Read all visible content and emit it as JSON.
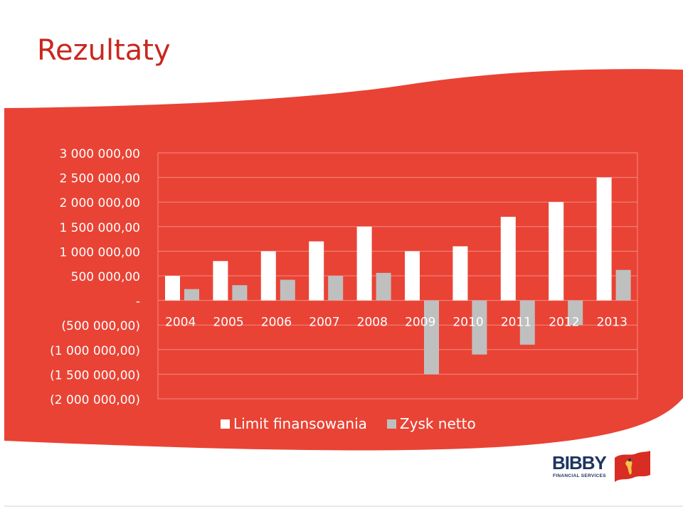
{
  "slide": {
    "title": "Rezultaty",
    "colors": {
      "accent_red": "#e94335",
      "title_red": "#c8281f",
      "white": "#ffffff",
      "grey_series": "#bfbfbf",
      "gridline": "#f28b80",
      "logo_navy": "#1e3560"
    }
  },
  "logo": {
    "name": "BIBBY",
    "subtitle": "FINANCIAL SERVICES",
    "icon": "bibby-flag-icon"
  },
  "chart_data": {
    "type": "bar",
    "title": "",
    "xlabel": "",
    "ylabel": "",
    "categories": [
      "2004",
      "2005",
      "2006",
      "2007",
      "2008",
      "2009",
      "2010",
      "2011",
      "2012",
      "2013"
    ],
    "series": [
      {
        "name": "Limit finansowania",
        "color": "#ffffff",
        "values": [
          500000,
          800000,
          1000000,
          1200000,
          1500000,
          1000000,
          1100000,
          1700000,
          2000000,
          2500000
        ]
      },
      {
        "name": "Zysk netto",
        "color": "#bfbfbf",
        "values": [
          230000,
          310000,
          420000,
          500000,
          560000,
          -1500000,
          -1100000,
          -900000,
          -500000,
          620000
        ]
      }
    ],
    "ylim": [
      -2000000,
      3000000
    ],
    "yticks": [
      {
        "value": 3000000,
        "label": "3 000 000,00"
      },
      {
        "value": 2500000,
        "label": "2 500 000,00"
      },
      {
        "value": 2000000,
        "label": "2 000 000,00"
      },
      {
        "value": 1500000,
        "label": "1 500 000,00"
      },
      {
        "value": 1000000,
        "label": "1 000 000,00"
      },
      {
        "value": 500000,
        "label": "500 000,00"
      },
      {
        "value": 0,
        "label": "-"
      },
      {
        "value": -500000,
        "label": "(500 000,00)"
      },
      {
        "value": -1000000,
        "label": "(1 000 000,00)"
      },
      {
        "value": -1500000,
        "label": "(1 500 000,00)"
      },
      {
        "value": -2000000,
        "label": "(2 000 000,00)"
      }
    ],
    "grid": true,
    "legend": "bottom"
  }
}
